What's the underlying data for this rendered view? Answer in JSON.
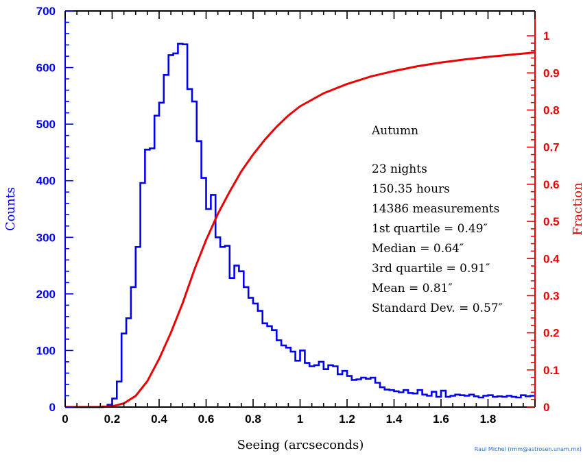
{
  "chart_data": {
    "type": "histogram",
    "xlabel": "Seeing (arcseconds)",
    "ylabel_left": "Counts",
    "ylabel_right": "Fraction",
    "xlim": [
      0,
      2.0
    ],
    "ylim_left": [
      0,
      700
    ],
    "ylim_right": [
      0,
      1.0667
    ],
    "x_ticks": [
      0,
      0.2,
      0.4,
      0.6,
      0.8,
      1,
      1.2,
      1.4,
      1.6,
      1.8
    ],
    "x_tick_labels": [
      "0",
      "0.2",
      "0.4",
      "0.6",
      "0.8",
      "1",
      "1.2",
      "1.4",
      "1.6",
      "1.8"
    ],
    "y_left_ticks": [
      0,
      100,
      200,
      300,
      400,
      500,
      600,
      700
    ],
    "y_left_tick_labels": [
      "0",
      "100",
      "200",
      "300",
      "400",
      "500",
      "600",
      "700"
    ],
    "y_right_ticks": [
      0,
      0.1,
      0.2,
      0.3,
      0.4,
      0.5,
      0.6,
      0.7,
      0.8,
      0.9,
      1
    ],
    "y_right_tick_labels": [
      "0",
      "0.1",
      "0.2",
      "0.3",
      "0.4",
      "0.5",
      "0.6",
      "0.7",
      "0.8",
      "0.9",
      "1"
    ],
    "histogram": {
      "color": "#0000ee",
      "bin_width": 0.02,
      "bin_start": 0.0,
      "counts": [
        0,
        0,
        0,
        0,
        0,
        0,
        0,
        0,
        1,
        4,
        15,
        45,
        130,
        157,
        212,
        283,
        396,
        455,
        457,
        515,
        538,
        587,
        622,
        625,
        642,
        641,
        562,
        540,
        470,
        405,
        350,
        375,
        300,
        283,
        285,
        228,
        250,
        240,
        212,
        193,
        183,
        170,
        148,
        143,
        136,
        118,
        109,
        105,
        98,
        82,
        100,
        78,
        72,
        74,
        80,
        67,
        74,
        72,
        58,
        64,
        55,
        48,
        49,
        52,
        50,
        52,
        43,
        35,
        31,
        30,
        28,
        26,
        30,
        25,
        24,
        30,
        22,
        20,
        27,
        18,
        29,
        18,
        20,
        22,
        21,
        20,
        22,
        19,
        17,
        20,
        21,
        18,
        19,
        18,
        20,
        18,
        17,
        21,
        19,
        20
      ]
    },
    "cumulative": {
      "color": "#ee0000",
      "x": [
        0,
        0.15,
        0.2,
        0.25,
        0.3,
        0.35,
        0.4,
        0.45,
        0.5,
        0.55,
        0.6,
        0.65,
        0.7,
        0.75,
        0.8,
        0.85,
        0.9,
        0.95,
        1.0,
        1.1,
        1.2,
        1.3,
        1.4,
        1.5,
        1.6,
        1.7,
        1.8,
        1.9,
        2.0
      ],
      "y": [
        0,
        0,
        0.002,
        0.01,
        0.03,
        0.07,
        0.13,
        0.2,
        0.28,
        0.37,
        0.45,
        0.52,
        0.58,
        0.635,
        0.68,
        0.72,
        0.755,
        0.785,
        0.81,
        0.845,
        0.87,
        0.89,
        0.905,
        0.918,
        0.928,
        0.936,
        0.943,
        0.949,
        0.955
      ]
    },
    "annotations": [
      "Autumn",
      "23 nights",
      "150.35 hours",
      "14386 measurements",
      "1st quartile = 0.49″",
      "Median = 0.64″",
      "3rd quartile = 0.91″",
      "Mean = 0.81″",
      "Standard Dev. = 0.57″"
    ],
    "credit": "Raul Michel (rmm@astrosen.unam.mx)"
  }
}
